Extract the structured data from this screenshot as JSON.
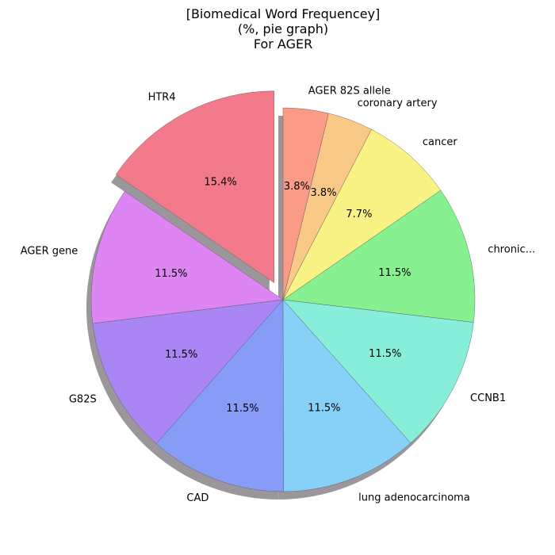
{
  "chart_data": {
    "type": "pie",
    "title": [
      "[Biomedical Word Frequencey]",
      "(%, pie graph)",
      "For AGER"
    ],
    "slices": [
      {
        "label": "HTR4",
        "value": 15.4,
        "pct_label": "15.4%",
        "color": "#f27a8a",
        "exploded": true
      },
      {
        "label": "AGER gene",
        "value": 11.5,
        "pct_label": "11.5%",
        "color": "#de85f4"
      },
      {
        "label": "G82S",
        "value": 11.5,
        "pct_label": "11.5%",
        "color": "#aa85f4"
      },
      {
        "label": "CAD",
        "value": 11.5,
        "pct_label": "11.5%",
        "color": "#879cf7"
      },
      {
        "label": "lung adenocarcinoma",
        "value": 11.5,
        "pct_label": "11.5%",
        "color": "#87d0f7"
      },
      {
        "label": "CCNB1",
        "value": 11.5,
        "pct_label": "11.5%",
        "color": "#87eed9"
      },
      {
        "label": "chronic...",
        "value": 11.5,
        "pct_label": "11.5%",
        "color": "#87f191"
      },
      {
        "label": "cancer",
        "value": 7.7,
        "pct_label": "7.7%",
        "color": "#f9f386"
      },
      {
        "label": "coronary artery",
        "value": 3.8,
        "pct_label": "3.8%",
        "color": "#f9c987"
      },
      {
        "label": "AGER 82S allele",
        "value": 3.8,
        "pct_label": "3.8%",
        "color": "#f99b87"
      }
    ],
    "start_angle_deg": 90,
    "direction": "counterclockwise",
    "shadow": true
  }
}
